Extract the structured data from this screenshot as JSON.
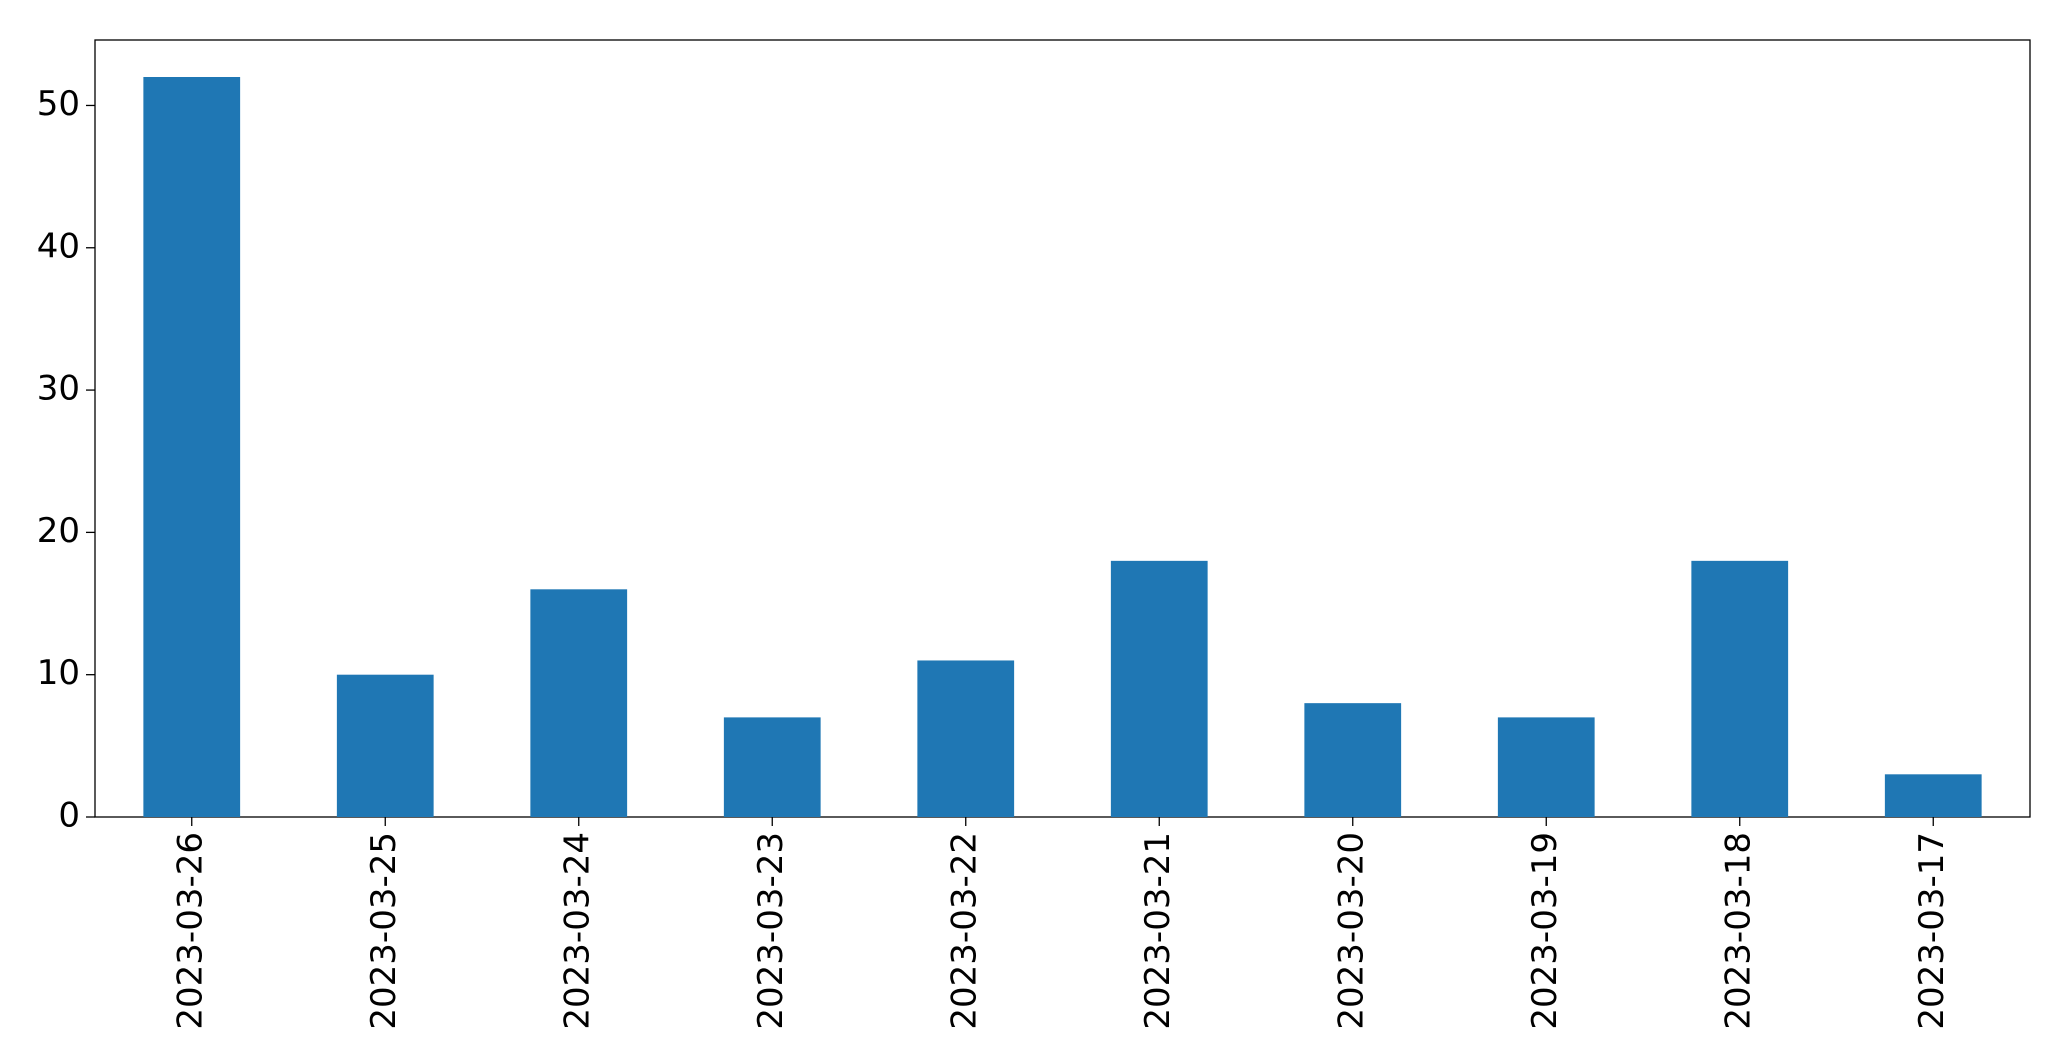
{
  "chart_data": {
    "type": "bar",
    "categories": [
      "2023-03-26",
      "2023-03-25",
      "2023-03-24",
      "2023-03-23",
      "2023-03-22",
      "2023-03-21",
      "2023-03-20",
      "2023-03-19",
      "2023-03-18",
      "2023-03-17"
    ],
    "values": [
      52,
      10,
      16,
      7,
      11,
      18,
      8,
      7,
      18,
      3
    ],
    "color": "#1f77b4",
    "ylim": [
      0,
      54.6
    ],
    "yticks": [
      0,
      10,
      20,
      30,
      40,
      50
    ],
    "grid": false
  }
}
